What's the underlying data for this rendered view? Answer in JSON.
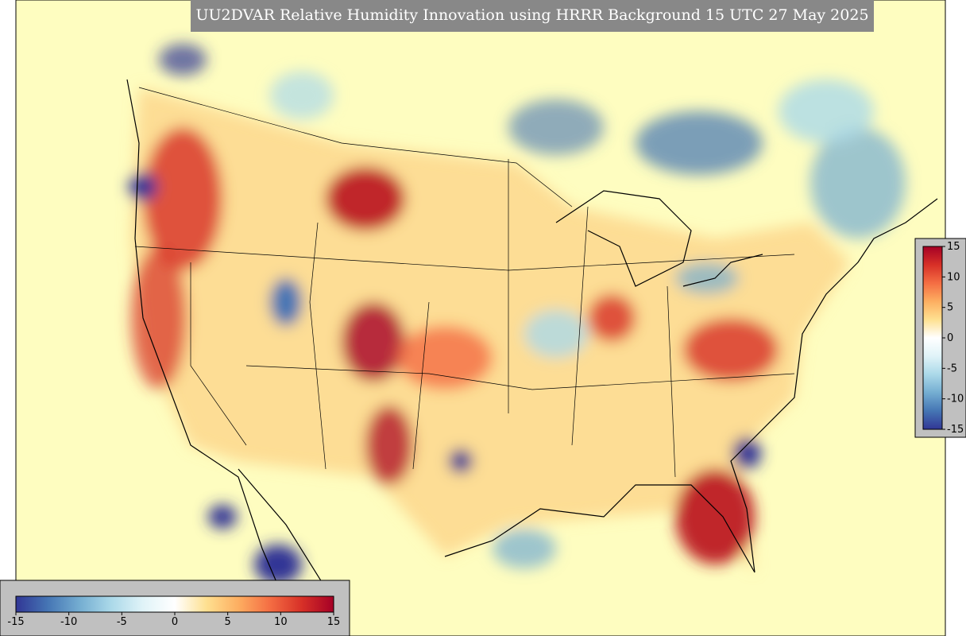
{
  "title": "UU2DVAR Relative Humidity Innovation using HRRR Background 15 UTC 27 May 2025",
  "colorbar": {
    "lim": [
      -15,
      15
    ],
    "ticks": [
      -15,
      -10,
      -5,
      0,
      5,
      10,
      15
    ],
    "colors": [
      "#313695",
      "#4575b4",
      "#74add1",
      "#abd9e9",
      "#e0f3f8",
      "#ffffff",
      "#fee090",
      "#fdae61",
      "#f46d43",
      "#d73027",
      "#a50026"
    ]
  }
}
